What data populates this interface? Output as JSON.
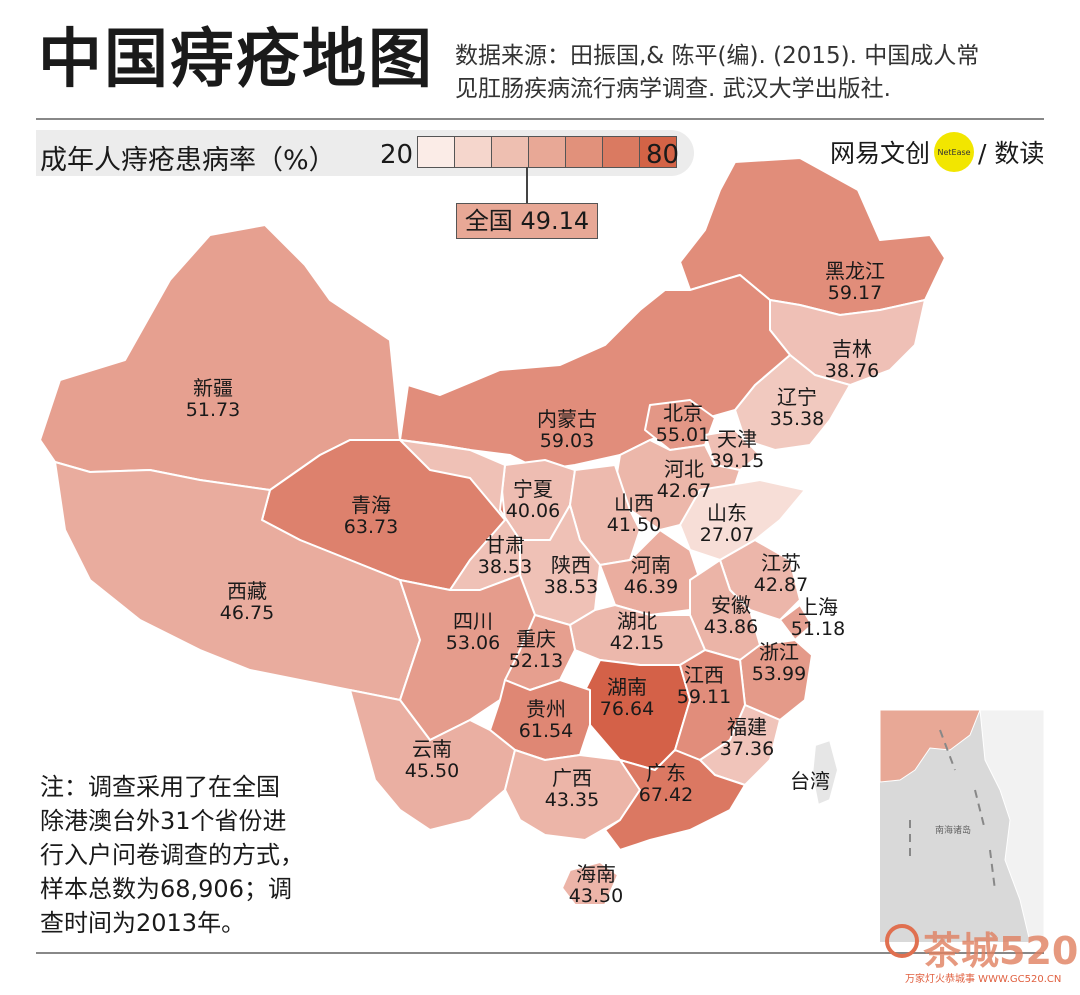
{
  "title": "中国痔疮地图",
  "source": {
    "line1": "数据来源：田振国,& 陈平(编). (2015). 中国成人常",
    "line2": "见肛肠疾病流行病学调查. 武汉大学出版社."
  },
  "legend": {
    "title": "成年人痔疮患病率（%）",
    "min": "20",
    "max": "80",
    "swatch_colors": [
      "#fbece7",
      "#f5d6cc",
      "#eebfb1",
      "#e8a896",
      "#e1917b",
      "#da7a61",
      "#d36346"
    ]
  },
  "national": {
    "label": "全国",
    "value": "49.14",
    "color": "#e8a896"
  },
  "brand": {
    "name": "网易文创",
    "dot": "NetEase",
    "sub": "/ 数读"
  },
  "provinces": [
    {
      "name": "黑龙江",
      "value": "59.17"
    },
    {
      "name": "吉林",
      "value": "38.76"
    },
    {
      "name": "辽宁",
      "value": "35.38"
    },
    {
      "name": "内蒙古",
      "value": "59.03"
    },
    {
      "name": "北京",
      "value": "55.01"
    },
    {
      "name": "天津",
      "value": "39.15"
    },
    {
      "name": "河北",
      "value": "42.67"
    },
    {
      "name": "新疆",
      "value": "51.73"
    },
    {
      "name": "宁夏",
      "value": "40.06"
    },
    {
      "name": "山西",
      "value": "41.50"
    },
    {
      "name": "山东",
      "value": "27.07"
    },
    {
      "name": "青海",
      "value": "63.73"
    },
    {
      "name": "甘肃",
      "value": "38.53"
    },
    {
      "name": "陕西",
      "value": "38.53"
    },
    {
      "name": "河南",
      "value": "46.39"
    },
    {
      "name": "江苏",
      "value": "42.87"
    },
    {
      "name": "西藏",
      "value": "46.75"
    },
    {
      "name": "安徽",
      "value": "43.86"
    },
    {
      "name": "上海",
      "value": "51.18"
    },
    {
      "name": "四川",
      "value": "53.06"
    },
    {
      "name": "湖北",
      "value": "42.15"
    },
    {
      "name": "重庆",
      "value": "52.13"
    },
    {
      "name": "浙江",
      "value": "53.99"
    },
    {
      "name": "湖南",
      "value": "76.64"
    },
    {
      "name": "江西",
      "value": "59.11"
    },
    {
      "name": "贵州",
      "value": "61.54"
    },
    {
      "name": "福建",
      "value": "37.36"
    },
    {
      "name": "云南",
      "value": "45.50"
    },
    {
      "name": "广西",
      "value": "43.35"
    },
    {
      "name": "广东",
      "value": "67.42"
    },
    {
      "name": "海南",
      "value": "43.50"
    }
  ],
  "taiwan": {
    "name": "台湾"
  },
  "inset": {
    "label": "南海诸岛"
  },
  "note": {
    "lines": [
      "注：调查采用了在全国",
      "除港澳台外31个省份进",
      "行入户问卷调查的方式，",
      "样本总数为68,906；调",
      "查时间为2013年。"
    ]
  },
  "watermark": {
    "text": "茶城520",
    "sub": "万家灯火恭城事 WWW.GC520.CN"
  }
}
